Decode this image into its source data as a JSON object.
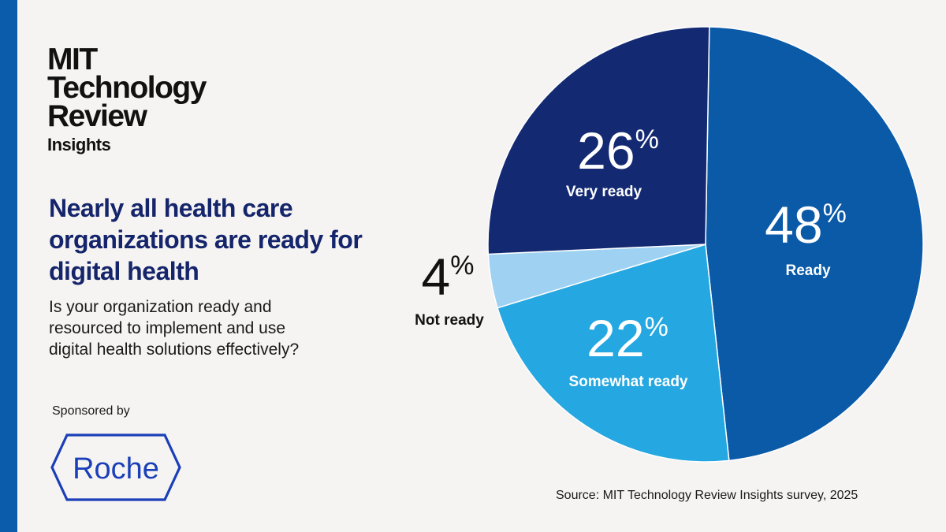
{
  "brand": {
    "logo_lines": [
      "MIT",
      "Technology",
      "Review"
    ],
    "logo_sub": "Insights",
    "accent_color": "#0b5cab",
    "headline_color": "#15256b"
  },
  "headline": "Nearly all health care organizations are ready for digital health",
  "question": "Is your organization ready and resourced to implement and use digital health solutions effectively?",
  "sponsor": {
    "label": "Sponsored by",
    "name": "Roche",
    "color": "#1a3fb8"
  },
  "source": "Source: MIT Technology Review Insights survey, 2025",
  "chart_data": {
    "type": "pie",
    "title": "",
    "start_angle_deg": 1,
    "direction": "clockwise",
    "percent_symbol": "%",
    "slices": [
      {
        "label": "Ready",
        "value": 48,
        "color": "#0a5aa8",
        "label_color": "#ffffff"
      },
      {
        "label": "Somewhat ready",
        "value": 22,
        "color": "#25a7e1",
        "label_color": "#ffffff"
      },
      {
        "label": "Not ready",
        "value": 4,
        "color": "#9fd2f2",
        "label_color": "#111111"
      },
      {
        "label": "Very ready",
        "value": 26,
        "color": "#132a72",
        "label_color": "#ffffff"
      }
    ]
  }
}
